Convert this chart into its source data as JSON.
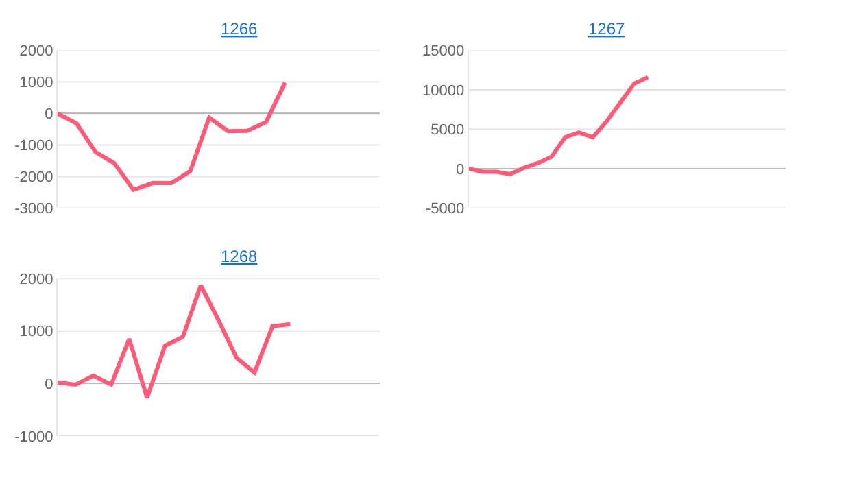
{
  "chart_data": [
    {
      "type": "line",
      "title": "1266",
      "categories": [
        null,
        null,
        null,
        null,
        null,
        null,
        null,
        null,
        null,
        null,
        null,
        null,
        null,
        null,
        null,
        null,
        null,
        null
      ],
      "series": [
        {
          "color": "#ff5a78",
          "values": [
            0,
            -310,
            -1220,
            -1580,
            -2420,
            -2210,
            -2210,
            -1830,
            -130,
            -560,
            -550,
            -270,
            980,
            null,
            null,
            null,
            null,
            null
          ]
        }
      ],
      "ylim": [
        -3000,
        2000
      ],
      "yticks": [
        -3000,
        -2000,
        -1000,
        0,
        1000,
        2000
      ],
      "grid": "y",
      "tick_labels": "y",
      "marker": "none",
      "line_style": "solid"
    },
    {
      "type": "line",
      "title": "1267",
      "categories": [
        null,
        null,
        null,
        null,
        null,
        null,
        null,
        null,
        null,
        null,
        null,
        null,
        null,
        null,
        null,
        null,
        null,
        null,
        null,
        null,
        null,
        null,
        null,
        null
      ],
      "series": [
        {
          "color": "#ff5a78",
          "values": [
            0,
            -400,
            -400,
            -700,
            100,
            700,
            1500,
            4000,
            4600,
            4000,
            6000,
            8400,
            10800,
            11600,
            null,
            null,
            null,
            null,
            null,
            null,
            null,
            null,
            null,
            null
          ]
        }
      ],
      "ylim": [
        -5000,
        15000
      ],
      "yticks": [
        -5000,
        0,
        5000,
        10000,
        15000
      ],
      "grid": "y",
      "tick_labels": "y",
      "marker": "none",
      "line_style": "solid"
    },
    {
      "type": "line",
      "title": "1268",
      "categories": [
        null,
        null,
        null,
        null,
        null,
        null,
        null,
        null,
        null,
        null,
        null,
        null,
        null,
        null,
        null,
        null,
        null,
        null,
        null
      ],
      "series": [
        {
          "color": "#ff5a78",
          "values": [
            20,
            -20,
            150,
            -20,
            850,
            -270,
            720,
            890,
            1870,
            1200,
            490,
            210,
            1090,
            1130,
            null,
            null,
            null,
            null,
            null
          ]
        }
      ],
      "ylim": [
        -1000,
        2000
      ],
      "yticks": [
        -1000,
        0,
        1000,
        2000
      ],
      "grid": "y",
      "tick_labels": "y",
      "marker": "none",
      "line_style": "solid"
    }
  ]
}
